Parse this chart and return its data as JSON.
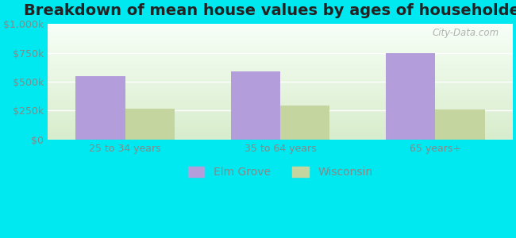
{
  "title": "Breakdown of mean house values by ages of householders",
  "categories": [
    "25 to 34 years",
    "35 to 64 years",
    "65 years+"
  ],
  "elm_grove": [
    550000,
    590000,
    750000
  ],
  "wisconsin": [
    265000,
    295000,
    260000
  ],
  "elm_grove_color": "#b39ddb",
  "wisconsin_color": "#c5d5a0",
  "background_outer": "#00e8f0",
  "background_inner_top": "#f7fff7",
  "background_inner_bottom": "#d8edcc",
  "ylim": [
    0,
    1000000
  ],
  "yticks": [
    0,
    250000,
    500000,
    750000,
    1000000
  ],
  "ytick_labels": [
    "$0",
    "$250k",
    "$500k",
    "$750k",
    "$1,000k"
  ],
  "legend_labels": [
    "Elm Grove",
    "Wisconsin"
  ],
  "watermark": "City-Data.com",
  "bar_width": 0.32,
  "title_fontsize": 14,
  "tick_fontsize": 9,
  "legend_fontsize": 10,
  "tick_color": "#888888",
  "grid_color": "#ffffff",
  "title_color": "#222222"
}
